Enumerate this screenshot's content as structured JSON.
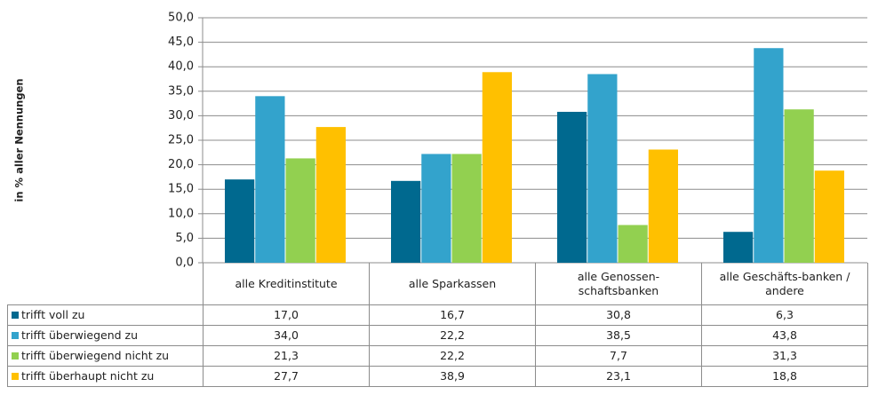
{
  "chart_data": {
    "type": "bar",
    "y_label": "in % aller Nennungen",
    "categories": [
      "alle Kreditinstitute",
      "alle Sparkassen",
      "alle Genossen-schaftsbanken",
      "alle Geschäfts-banken / andere"
    ],
    "series": [
      {
        "name": "trifft voll zu",
        "color": "#00698f",
        "values": [
          17.0,
          16.7,
          30.8,
          6.3
        ],
        "value_labels": [
          "17,0",
          "16,7",
          "30,8",
          "6,3"
        ]
      },
      {
        "name": "trifft überwiegend zu",
        "color": "#33a3cc",
        "values": [
          34.0,
          22.2,
          38.5,
          43.8
        ],
        "value_labels": [
          "34,0",
          "22,2",
          "38,5",
          "43,8"
        ]
      },
      {
        "name": "trifft überwiegend nicht zu",
        "color": "#92d050",
        "values": [
          21.3,
          22.2,
          7.7,
          31.3
        ],
        "value_labels": [
          "21,3",
          "22,2",
          "7,7",
          "31,3"
        ]
      },
      {
        "name": "trifft überhaupt nicht zu",
        "color": "#ffc000",
        "values": [
          27.7,
          38.9,
          23.1,
          18.8
        ],
        "value_labels": [
          "27,7",
          "38,9",
          "23,1",
          "18,8"
        ]
      }
    ],
    "ylim": [
      0,
      50
    ],
    "yticks": [
      {
        "value": 0,
        "label": "0,0"
      },
      {
        "value": 5,
        "label": "5,0"
      },
      {
        "value": 10,
        "label": "10,0"
      },
      {
        "value": 15,
        "label": "15,0"
      },
      {
        "value": 20,
        "label": "20,0"
      },
      {
        "value": 25,
        "label": "25,0"
      },
      {
        "value": 30,
        "label": "30,0"
      },
      {
        "value": 35,
        "label": "35,0"
      },
      {
        "value": 40,
        "label": "40,0"
      },
      {
        "value": 45,
        "label": "45,0"
      },
      {
        "value": 50,
        "label": "50,0"
      }
    ],
    "grid": true
  }
}
